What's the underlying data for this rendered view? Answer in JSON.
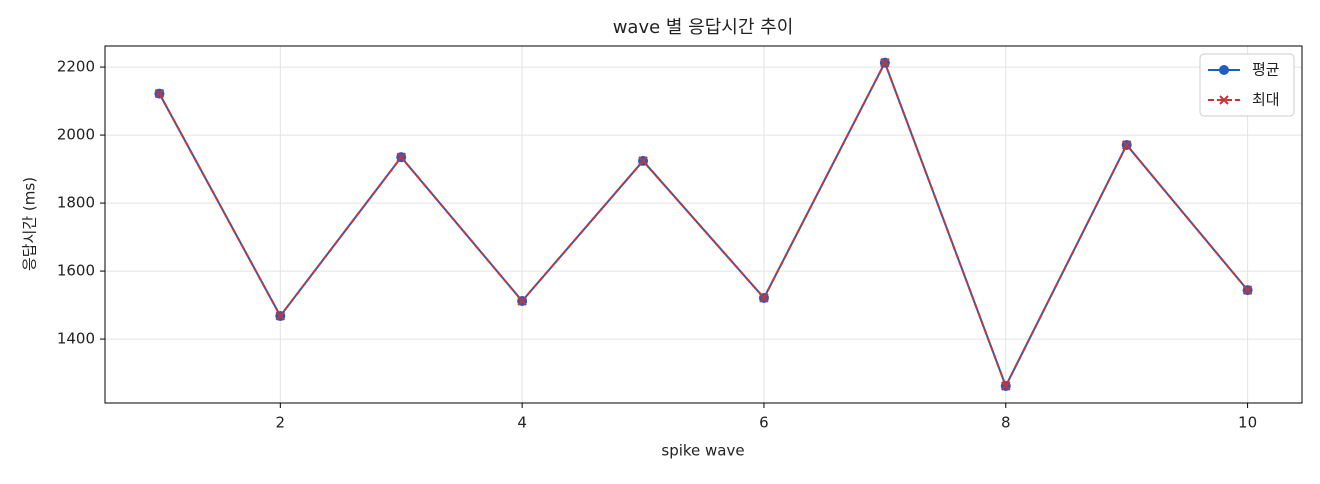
{
  "chart_data": {
    "type": "line",
    "title": "wave 별 응답시간 추이",
    "x_label": "spike wave",
    "y_label": "응답시간 (ms)",
    "x": [
      1,
      2,
      3,
      4,
      5,
      6,
      7,
      8,
      9,
      10
    ],
    "series": [
      {
        "name": "평균",
        "color": "#1f5fbf",
        "values": [
          2122,
          1468,
          1935,
          1512,
          1924,
          1521,
          2213,
          1262,
          1971,
          1544
        ]
      },
      {
        "name": "최대",
        "color": "#c8343a",
        "values": [
          2122,
          1468,
          1935,
          1512,
          1924,
          1521,
          2213,
          1262,
          1971,
          1544
        ]
      }
    ],
    "xlim": [
      0.55,
      10.45
    ],
    "ylim": [
      1212,
      2262
    ],
    "xticks": [
      2,
      4,
      6,
      8,
      10
    ],
    "yticks": [
      1400,
      1600,
      1800,
      2000,
      2200
    ],
    "grid": true,
    "legend": "upper right"
  }
}
